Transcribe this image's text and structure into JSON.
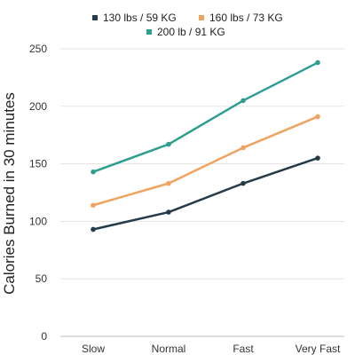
{
  "chart_data": {
    "type": "line",
    "title": "",
    "xlabel": "",
    "ylabel": "Calories Burned in 30 minutes",
    "categories": [
      "Slow",
      "Normal",
      "Fast",
      "Very Fast"
    ],
    "ylim": [
      0,
      250
    ],
    "yticks": [
      0,
      50,
      100,
      150,
      200,
      250
    ],
    "grid": true,
    "legend_position": "top-center",
    "series": [
      {
        "name": "130 lbs / 59 KG",
        "color": "#243b4a",
        "values": [
          93,
          108,
          133,
          155
        ]
      },
      {
        "name": "160 lbs / 73 KG",
        "color": "#f0a35e",
        "values": [
          114,
          133,
          164,
          191
        ]
      },
      {
        "name": "200 lb / 91 KG",
        "color": "#2e9e8f",
        "values": [
          143,
          167,
          205,
          238
        ]
      }
    ]
  }
}
